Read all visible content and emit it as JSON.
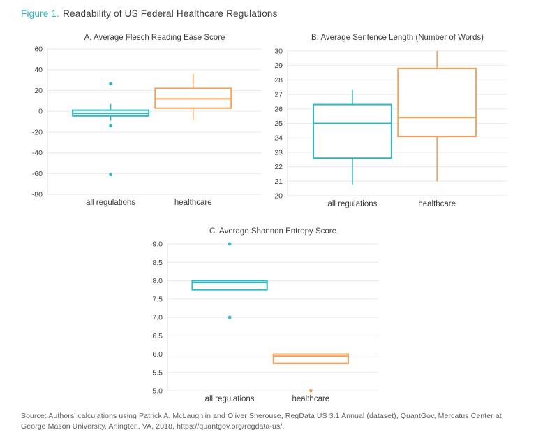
{
  "figure": {
    "label": "Figure 1.",
    "title": "Readability of US Federal Healthcare Regulations"
  },
  "colors": {
    "teal": "#2eb8c5",
    "orange": "#f2a25c",
    "grid": "#e9e9e9",
    "axis": "#dddddd",
    "box_fill": "#ffffff"
  },
  "chart_data": [
    {
      "id": "panel-a",
      "type": "box",
      "title": "A. Average Flesch Reading Ease Score",
      "categories": [
        "all regulations",
        "healthcare"
      ],
      "ylim": [
        -80,
        60
      ],
      "ytick_step": 20,
      "ytick_decimals": 0,
      "grid": true,
      "series": [
        {
          "name": "all regulations",
          "color": "teal",
          "low": -9,
          "q1": -4.5,
          "median": -2,
          "q3": 1,
          "high": 7,
          "outliers": [
            26.5,
            -14,
            -61
          ]
        },
        {
          "name": "healthcare",
          "color": "orange",
          "low": -8.5,
          "q1": 3,
          "median": 12,
          "q3": 22,
          "high": 36,
          "outliers": []
        }
      ]
    },
    {
      "id": "panel-b",
      "type": "box",
      "title": "B. Average Sentence Length (Number of Words)",
      "categories": [
        "all regulations",
        "healthcare"
      ],
      "ylim": [
        20,
        30
      ],
      "ytick_step": 1,
      "ytick_decimals": 0,
      "grid": true,
      "series": [
        {
          "name": "all regulations",
          "color": "teal",
          "low": 20.8,
          "q1": 22.6,
          "median": 25.0,
          "q3": 26.3,
          "high": 27.3,
          "outliers": []
        },
        {
          "name": "healthcare",
          "color": "orange",
          "low": 21.0,
          "q1": 24.1,
          "median": 25.4,
          "q3": 28.8,
          "high": 30.0,
          "outliers": []
        }
      ]
    },
    {
      "id": "panel-c",
      "type": "box",
      "title": "C. Average Shannon Entropy Score",
      "categories": [
        "all regulations",
        "healthcare"
      ],
      "ylim": [
        5.0,
        9.0
      ],
      "ytick_step": 0.5,
      "ytick_decimals": 1,
      "grid": true,
      "series": [
        {
          "name": "all regulations",
          "color": "teal",
          "low": 7.75,
          "q1": 7.75,
          "median": 7.95,
          "q3": 8.0,
          "high": 8.0,
          "outliers": [
            9.0,
            7.0
          ]
        },
        {
          "name": "healthcare",
          "color": "orange",
          "low": 5.75,
          "q1": 5.75,
          "median": 5.95,
          "q3": 6.0,
          "high": 6.0,
          "outliers": [
            5.0
          ]
        }
      ]
    }
  ],
  "source": {
    "text": "Source: Authors' calculations using Patrick A. McLaughlin and Oliver Sherouse, RegData US 3.1 Annual (dataset), QuantGov, Mercatus Center at George Mason University, Arlington, VA, 2018, https://quantgov.org/regdata-us/."
  }
}
